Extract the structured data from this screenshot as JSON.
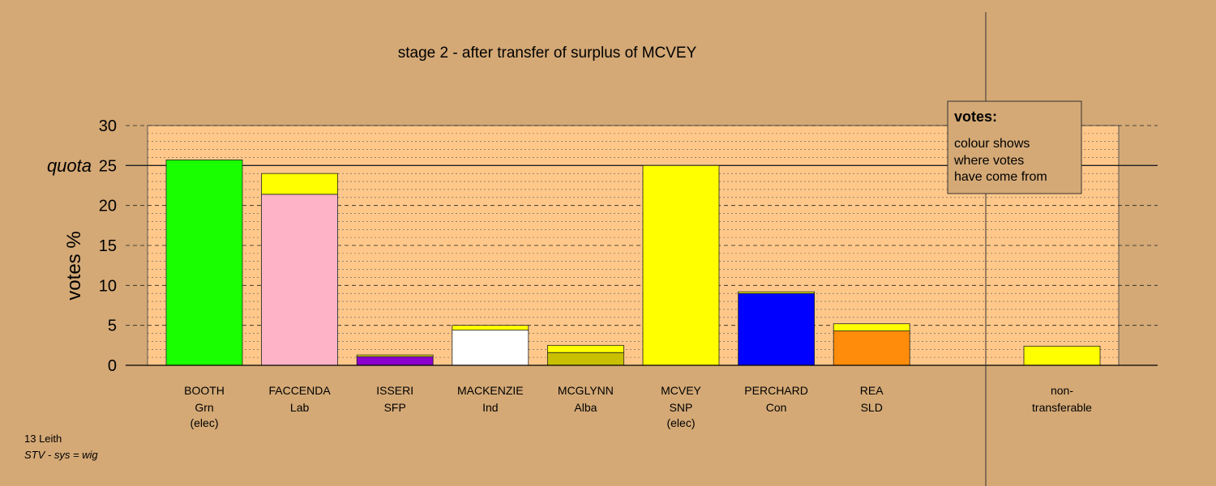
{
  "chart_data": {
    "type": "bar",
    "title": "stage 2 - after transfer of surplus of MCVEY",
    "ylabel": "votes %",
    "ylim": [
      0,
      30
    ],
    "yticks": [
      0,
      5,
      10,
      15,
      20,
      25,
      30
    ],
    "quota": {
      "label": "quota",
      "value": 25
    },
    "legend": {
      "title": "votes:",
      "lines": [
        "colour shows",
        "where votes",
        "have come from"
      ]
    },
    "categories": [
      {
        "name": "BOOTH",
        "party": "Grn",
        "note": "(elec)",
        "segments": [
          {
            "value": 25.7,
            "color": "#1aff00"
          }
        ]
      },
      {
        "name": "FACCENDA",
        "party": "Lab",
        "note": "",
        "segments": [
          {
            "value": 21.4,
            "color": "#ffb3c6"
          },
          {
            "value": 2.6,
            "color": "#ffff00"
          }
        ]
      },
      {
        "name": "ISSERI",
        "party": "SFP",
        "note": "",
        "segments": [
          {
            "value": 1.1,
            "color": "#8b00cc"
          },
          {
            "value": 0.2,
            "color": "#ffff00"
          }
        ]
      },
      {
        "name": "MACKENZIE",
        "party": "Ind",
        "note": "",
        "segments": [
          {
            "value": 4.4,
            "color": "#ffffff"
          },
          {
            "value": 0.6,
            "color": "#ffff00"
          }
        ]
      },
      {
        "name": "MCGLYNN",
        "party": "Alba",
        "note": "",
        "segments": [
          {
            "value": 1.6,
            "color": "#c8c000"
          },
          {
            "value": 0.9,
            "color": "#ffff00"
          }
        ]
      },
      {
        "name": "MCVEY",
        "party": "SNP",
        "note": "(elec)",
        "segments": [
          {
            "value": 25.0,
            "color": "#ffff00"
          }
        ]
      },
      {
        "name": "PERCHARD",
        "party": "Con",
        "note": "",
        "segments": [
          {
            "value": 9.0,
            "color": "#0000ff"
          },
          {
            "value": 0.2,
            "color": "#ffff00"
          }
        ]
      },
      {
        "name": "REA",
        "party": "SLD",
        "note": "",
        "segments": [
          {
            "value": 4.3,
            "color": "#ff8c0a"
          },
          {
            "value": 0.9,
            "color": "#ffff00"
          }
        ]
      }
    ],
    "nontransferable": {
      "line1": "non-",
      "line2": "transferable",
      "value": 2.4,
      "color": "#ffff00"
    }
  },
  "footer": {
    "constituency": "13 Leith",
    "system": "STV - sys = wig"
  }
}
